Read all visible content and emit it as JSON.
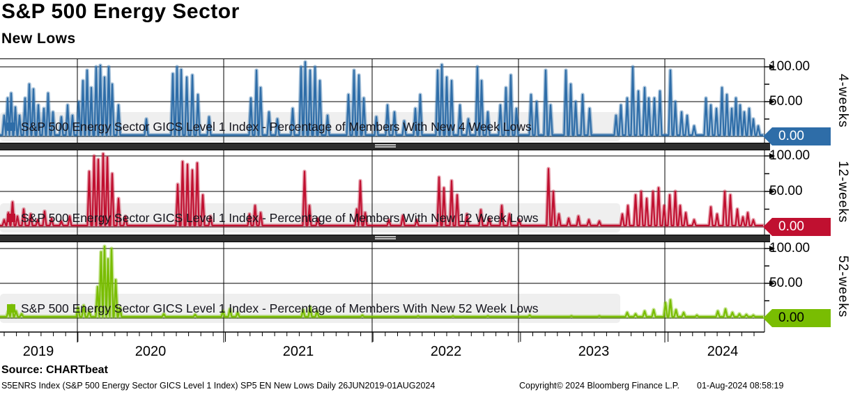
{
  "header": {
    "title": "S&P 500 Energy Sector",
    "subtitle": "New Lows"
  },
  "footer": {
    "source": "Source: CHARTbeat",
    "description": "S5ENRS Index (S&P 500 Energy Sector GICS Level 1 Index) SP5 EN New Lows  Daily 26JUN2019-01AUG2024",
    "copyright": "Copyright© 2024 Bloomberg Finance L.P.",
    "timestamp": "01-Aug-2024 08:58:19"
  },
  "chart_data": {
    "type": "line",
    "title": "S&P 500 Energy Sector",
    "subtitle": "New Lows",
    "x_axis": {
      "start": "26JUN2019",
      "end": "01AUG2024",
      "frequency": "Daily",
      "tick_labels": [
        "2019",
        "2020",
        "2021",
        "2022",
        "2023",
        "2024"
      ]
    },
    "y_axis": {
      "ylim": [
        0,
        100
      ],
      "major_ticks": [
        0,
        50,
        100
      ],
      "minor_ticks": [
        25,
        75
      ]
    },
    "grid": "on",
    "panels": [
      {
        "id": "4-weeks",
        "axis_label": "4-weeks",
        "legend": "S&P 500 Energy Sector GICS Level 1 Index - Percentage of Members With New 4 Week Lows",
        "color": "#2e6da8",
        "halo_color": "rgba(46,109,168,0.42)",
        "tag_value": "0.00",
        "tag_text_color": "#ffffff",
        "ytick_100": "100.00",
        "ytick_50": "50.00",
        "baseline": 2,
        "spikes": [
          [
            6,
            30
          ],
          [
            11,
            55
          ],
          [
            16,
            62
          ],
          [
            22,
            42
          ],
          [
            28,
            30
          ],
          [
            36,
            55
          ],
          [
            42,
            75
          ],
          [
            48,
            68
          ],
          [
            55,
            45
          ],
          [
            63,
            40
          ],
          [
            69,
            62
          ],
          [
            76,
            35
          ],
          [
            88,
            28
          ],
          [
            97,
            45
          ],
          [
            104,
            30
          ],
          [
            113,
            50
          ],
          [
            119,
            80
          ],
          [
            125,
            95
          ],
          [
            131,
            70
          ],
          [
            138,
            100
          ],
          [
            144,
            102
          ],
          [
            150,
            85
          ],
          [
            156,
            100
          ],
          [
            161,
            75
          ],
          [
            170,
            45
          ],
          [
            210,
            25
          ],
          [
            248,
            90
          ],
          [
            254,
            100
          ],
          [
            260,
            96
          ],
          [
            268,
            85
          ],
          [
            276,
            88
          ],
          [
            284,
            60
          ],
          [
            300,
            28
          ],
          [
            360,
            55
          ],
          [
            368,
            95
          ],
          [
            374,
            70
          ],
          [
            386,
            35
          ],
          [
            398,
            25
          ],
          [
            420,
            40
          ],
          [
            432,
            100
          ],
          [
            438,
            107
          ],
          [
            445,
            95
          ],
          [
            452,
            100
          ],
          [
            459,
            80
          ],
          [
            470,
            30
          ],
          [
            500,
            60
          ],
          [
            508,
            95
          ],
          [
            515,
            88
          ],
          [
            522,
            55
          ],
          [
            540,
            28
          ],
          [
            556,
            45
          ],
          [
            566,
            35
          ],
          [
            580,
            22
          ],
          [
            596,
            40
          ],
          [
            603,
            60
          ],
          [
            628,
            95
          ],
          [
            634,
            103
          ],
          [
            641,
            85
          ],
          [
            648,
            80
          ],
          [
            660,
            45
          ],
          [
            672,
            25
          ],
          [
            685,
            100
          ],
          [
            691,
            80
          ],
          [
            700,
            35
          ],
          [
            718,
            45
          ],
          [
            726,
            70
          ],
          [
            733,
            88
          ],
          [
            741,
            40
          ],
          [
            762,
            60
          ],
          [
            770,
            50
          ],
          [
            783,
            95
          ],
          [
            790,
            45
          ],
          [
            812,
            95
          ],
          [
            819,
            75
          ],
          [
            826,
            50
          ],
          [
            836,
            60
          ],
          [
            846,
            40
          ],
          [
            884,
            30
          ],
          [
            891,
            45
          ],
          [
            900,
            55
          ],
          [
            908,
            100
          ],
          [
            916,
            65
          ],
          [
            925,
            70
          ],
          [
            931,
            55
          ],
          [
            939,
            55
          ],
          [
            947,
            65
          ],
          [
            962,
            95
          ],
          [
            969,
            50
          ],
          [
            978,
            35
          ],
          [
            986,
            30
          ],
          [
            996,
            15
          ],
          [
            1013,
            55
          ],
          [
            1020,
            45
          ],
          [
            1028,
            40
          ],
          [
            1036,
            70
          ],
          [
            1043,
            60
          ],
          [
            1050,
            40
          ],
          [
            1056,
            55
          ],
          [
            1062,
            45
          ],
          [
            1068,
            35
          ],
          [
            1075,
            40
          ],
          [
            1081,
            25
          ],
          [
            1088,
            15
          ]
        ]
      },
      {
        "id": "12-weeks",
        "axis_label": "12-weeks",
        "legend": "S&P 500 Energy Sector GICS Level 1 Index - Percentage of Members With New 12 Week Lows",
        "color": "#c01030",
        "halo_color": "rgba(192,16,48,0.38)",
        "tag_value": "0.00",
        "tag_text_color": "#ffffff",
        "ytick_100": "100.00",
        "ytick_50": "50.00",
        "baseline": 2,
        "spikes": [
          [
            6,
            10
          ],
          [
            12,
            20
          ],
          [
            18,
            35
          ],
          [
            25,
            15
          ],
          [
            34,
            25
          ],
          [
            44,
            18
          ],
          [
            54,
            10
          ],
          [
            64,
            22
          ],
          [
            74,
            12
          ],
          [
            88,
            8
          ],
          [
            100,
            15
          ],
          [
            128,
            78
          ],
          [
            135,
            100
          ],
          [
            141,
            95
          ],
          [
            148,
            103
          ],
          [
            154,
            98
          ],
          [
            161,
            75
          ],
          [
            170,
            40
          ],
          [
            180,
            15
          ],
          [
            255,
            60
          ],
          [
            262,
            92
          ],
          [
            269,
            88
          ],
          [
            276,
            80
          ],
          [
            283,
            90
          ],
          [
            291,
            45
          ],
          [
            302,
            15
          ],
          [
            358,
            18
          ],
          [
            366,
            30
          ],
          [
            374,
            20
          ],
          [
            437,
            78
          ],
          [
            444,
            30
          ],
          [
            456,
            12
          ],
          [
            512,
            25
          ],
          [
            517,
            65
          ],
          [
            524,
            20
          ],
          [
            558,
            10
          ],
          [
            578,
            16
          ],
          [
            598,
            10
          ],
          [
            630,
            70
          ],
          [
            637,
            55
          ],
          [
            648,
            65
          ],
          [
            656,
            45
          ],
          [
            670,
            18
          ],
          [
            690,
            24
          ],
          [
            702,
            12
          ],
          [
            720,
            30
          ],
          [
            731,
            18
          ],
          [
            745,
            10
          ],
          [
            787,
            82
          ],
          [
            794,
            50
          ],
          [
            802,
            18
          ],
          [
            816,
            12
          ],
          [
            830,
            15
          ],
          [
            845,
            10
          ],
          [
            860,
            8
          ],
          [
            893,
            18
          ],
          [
            901,
            30
          ],
          [
            912,
            45
          ],
          [
            920,
            50
          ],
          [
            928,
            40
          ],
          [
            937,
            50
          ],
          [
            945,
            55
          ],
          [
            953,
            30
          ],
          [
            961,
            45
          ],
          [
            969,
            50
          ],
          [
            976,
            30
          ],
          [
            984,
            20
          ],
          [
            996,
            10
          ],
          [
            1020,
            28
          ],
          [
            1029,
            18
          ],
          [
            1040,
            50
          ],
          [
            1048,
            45
          ],
          [
            1058,
            25
          ],
          [
            1066,
            14
          ],
          [
            1073,
            20
          ],
          [
            1081,
            10
          ]
        ]
      },
      {
        "id": "52-weeks",
        "axis_label": "52-weeks",
        "legend": "S&P 500 Energy Sector GICS Level 1 Index - Percentage of Members With New 52 Week Lows",
        "color": "#79bd02",
        "halo_color": "rgba(125,193,9,0.45)",
        "tag_value": "0.00",
        "tag_text_color": "#000000",
        "ytick_100": "100.00",
        "ytick_50": "50.00",
        "baseline": 2,
        "spikes": [
          [
            12,
            10
          ],
          [
            17,
            18
          ],
          [
            23,
            10
          ],
          [
            31,
            6
          ],
          [
            112,
            15
          ],
          [
            120,
            18
          ],
          [
            128,
            10
          ],
          [
            140,
            45
          ],
          [
            145,
            95
          ],
          [
            150,
            103
          ],
          [
            155,
            85
          ],
          [
            160,
            100
          ],
          [
            166,
            55
          ],
          [
            172,
            15
          ],
          [
            235,
            6
          ],
          [
            280,
            5
          ],
          [
            320,
            10
          ],
          [
            330,
            13
          ],
          [
            341,
            8
          ],
          [
            435,
            12
          ],
          [
            445,
            16
          ],
          [
            455,
            10
          ],
          [
            520,
            4
          ],
          [
            600,
            3
          ],
          [
            650,
            3
          ],
          [
            700,
            3
          ],
          [
            760,
            4
          ],
          [
            820,
            3
          ],
          [
            860,
            3
          ],
          [
            900,
            8
          ],
          [
            912,
            6
          ],
          [
            925,
            10
          ],
          [
            938,
            12
          ],
          [
            955,
            22
          ],
          [
            962,
            26
          ],
          [
            970,
            12
          ],
          [
            981,
            8
          ],
          [
            1000,
            4
          ],
          [
            1030,
            10
          ],
          [
            1041,
            13
          ],
          [
            1051,
            8
          ],
          [
            1061,
            6
          ],
          [
            1071,
            5
          ],
          [
            1081,
            4
          ]
        ]
      }
    ]
  }
}
